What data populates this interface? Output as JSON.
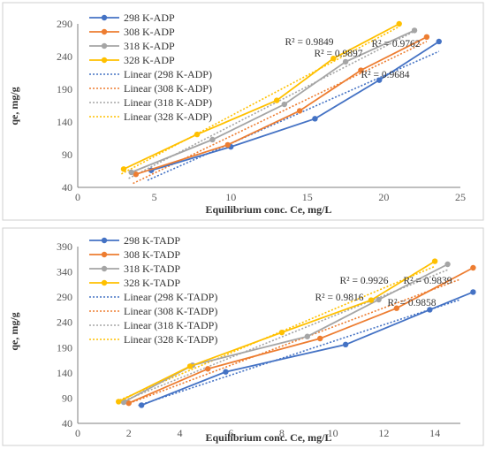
{
  "chart_data": [
    {
      "type": "line",
      "title": "",
      "xlabel": "Equilibrium conc. Ce, mg/L",
      "ylabel": "qe, mg/g",
      "xlim": [
        0,
        25
      ],
      "ylim": [
        40,
        290
      ],
      "xticks": [
        0,
        5,
        10,
        15,
        20,
        25
      ],
      "yticks": [
        40,
        90,
        140,
        190,
        240,
        290
      ],
      "grid": false,
      "legend_position": "top-left",
      "series": [
        {
          "name": "298 K-ADP",
          "color": "#4472c4",
          "x": [
            4.8,
            10,
            15.5,
            19.7,
            23.6
          ],
          "y": [
            66,
            102,
            145,
            204,
            263
          ],
          "linear_name": "Linear (298 K-ADP)",
          "r2": "R² = 0.9684"
        },
        {
          "name": "308 K-ADP",
          "color": "#ed7d31",
          "x": [
            3.8,
            9.8,
            14.5,
            18.5,
            22.8
          ],
          "y": [
            60,
            105,
            157,
            219,
            270
          ],
          "linear_name": "Linear (308 K-ADP)",
          "r2": "R² = 0.9762"
        },
        {
          "name": "318 K-ADP",
          "color": "#a5a5a5",
          "x": [
            3.5,
            8.8,
            13.5,
            17.5,
            22
          ],
          "y": [
            63,
            113,
            167,
            232,
            280
          ],
          "linear_name": "Linear (318 K-ADP)",
          "r2": "R² = 0.9897"
        },
        {
          "name": "328 K-ADP",
          "color": "#ffc000",
          "x": [
            3.0,
            7.8,
            13.0,
            16.7,
            21
          ],
          "y": [
            68,
            121,
            173,
            237,
            290
          ],
          "linear_name": "Linear (328 K-ADP)",
          "r2": "R² = 0.9849"
        }
      ]
    },
    {
      "type": "line",
      "title": "",
      "xlabel": "Equilibrium conc. Ce, mg/L",
      "ylabel": "qe, mg/g",
      "xlim": [
        0,
        15
      ],
      "ylim": [
        40,
        390
      ],
      "xticks": [
        0,
        2,
        4,
        6,
        8,
        10,
        12,
        14
      ],
      "yticks": [
        40,
        90,
        140,
        190,
        240,
        290,
        340,
        390
      ],
      "grid": false,
      "legend_position": "top-left",
      "series": [
        {
          "name": "298 K-TADP",
          "color": "#4472c4",
          "x": [
            2.5,
            5.8,
            10.5,
            13.8,
            15.5
          ],
          "y": [
            76,
            142,
            196,
            265,
            300
          ],
          "linear_name": "Linear (298 K-TADP)",
          "r2": "R² = 0.9858"
        },
        {
          "name": "308 K-TADP",
          "color": "#ed7d31",
          "x": [
            2.0,
            5.1,
            9.5,
            12.5,
            15.5
          ],
          "y": [
            80,
            148,
            208,
            268,
            348
          ],
          "linear_name": "Linear (308 K-TADP)",
          "r2": "R² = 0.9839"
        },
        {
          "name": "318 K-TADP",
          "color": "#a5a5a5",
          "x": [
            1.8,
            4.5,
            9.0,
            11.8,
            14.5
          ],
          "y": [
            82,
            155,
            212,
            285,
            355
          ],
          "linear_name": "Linear (318 K-TADP)",
          "r2": "R² = 0.9926"
        },
        {
          "name": "328 K-TADP",
          "color": "#ffc000",
          "x": [
            1.6,
            4.4,
            8.0,
            11.5,
            14.0
          ],
          "y": [
            83,
            153,
            220,
            284,
            361
          ],
          "linear_name": "Linear (328 K-TADP)",
          "r2": "R² = 0.9816"
        }
      ]
    }
  ]
}
